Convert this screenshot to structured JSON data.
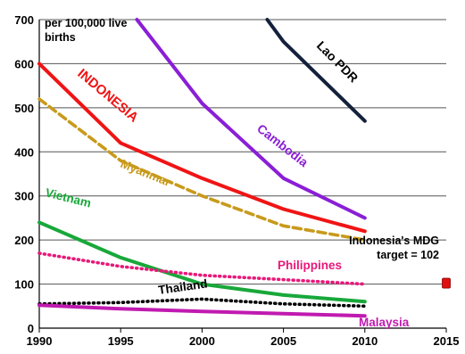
{
  "chart_data": {
    "type": "line",
    "ylabel": "per 100,000 live births",
    "ylim": [
      0,
      700
    ],
    "xlim": [
      1990,
      2015
    ],
    "x_ticks": [
      1990,
      1995,
      2000,
      2005,
      2010,
      2015
    ],
    "y_ticks": [
      0,
      100,
      200,
      300,
      400,
      500,
      600,
      700
    ],
    "grid": "horizontal",
    "series": [
      {
        "name": "Lao PDR",
        "color": "#14213d",
        "style": "solid",
        "x": [
          2004,
          2005,
          2010
        ],
        "y": [
          700,
          650,
          470
        ]
      },
      {
        "name": "Cambodia",
        "color": "#8a1fd6",
        "style": "solid",
        "x": [
          1996,
          2000,
          2005,
          2010
        ],
        "y": [
          700,
          510,
          340,
          250
        ]
      },
      {
        "name": "INDONESIA",
        "color": "#f01414",
        "style": "solid",
        "x": [
          1990,
          1995,
          2000,
          2005,
          2010
        ],
        "y": [
          600,
          420,
          340,
          270,
          220
        ]
      },
      {
        "name": "Myanmar",
        "color": "#c89a1c",
        "style": "dashed",
        "x": [
          1990,
          1995,
          2000,
          2005,
          2010
        ],
        "y": [
          520,
          380,
          300,
          232,
          200
        ]
      },
      {
        "name": "Vietnam",
        "color": "#18a83a",
        "style": "solid",
        "x": [
          1990,
          1995,
          2000,
          2005,
          2010
        ],
        "y": [
          240,
          160,
          100,
          75,
          60
        ]
      },
      {
        "name": "Philippines",
        "color": "#e8197a",
        "style": "dotted",
        "x": [
          1990,
          1995,
          2000,
          2005,
          2010
        ],
        "y": [
          170,
          140,
          120,
          110,
          100
        ]
      },
      {
        "name": "Thailand",
        "color": "#000000",
        "style": "dotted",
        "x": [
          1990,
          1995,
          2000,
          2005,
          2010
        ],
        "y": [
          55,
          58,
          66,
          55,
          50
        ]
      },
      {
        "name": "Malaysia",
        "color": "#c01ab0",
        "style": "solid",
        "x": [
          1990,
          1995,
          2000,
          2005,
          2010
        ],
        "y": [
          52,
          44,
          38,
          33,
          28
        ]
      }
    ],
    "target": {
      "label_line1": "Indonesia's MDG",
      "label_line2": "target = 102",
      "x": 2015,
      "y": 102,
      "color": "#e01010"
    }
  }
}
